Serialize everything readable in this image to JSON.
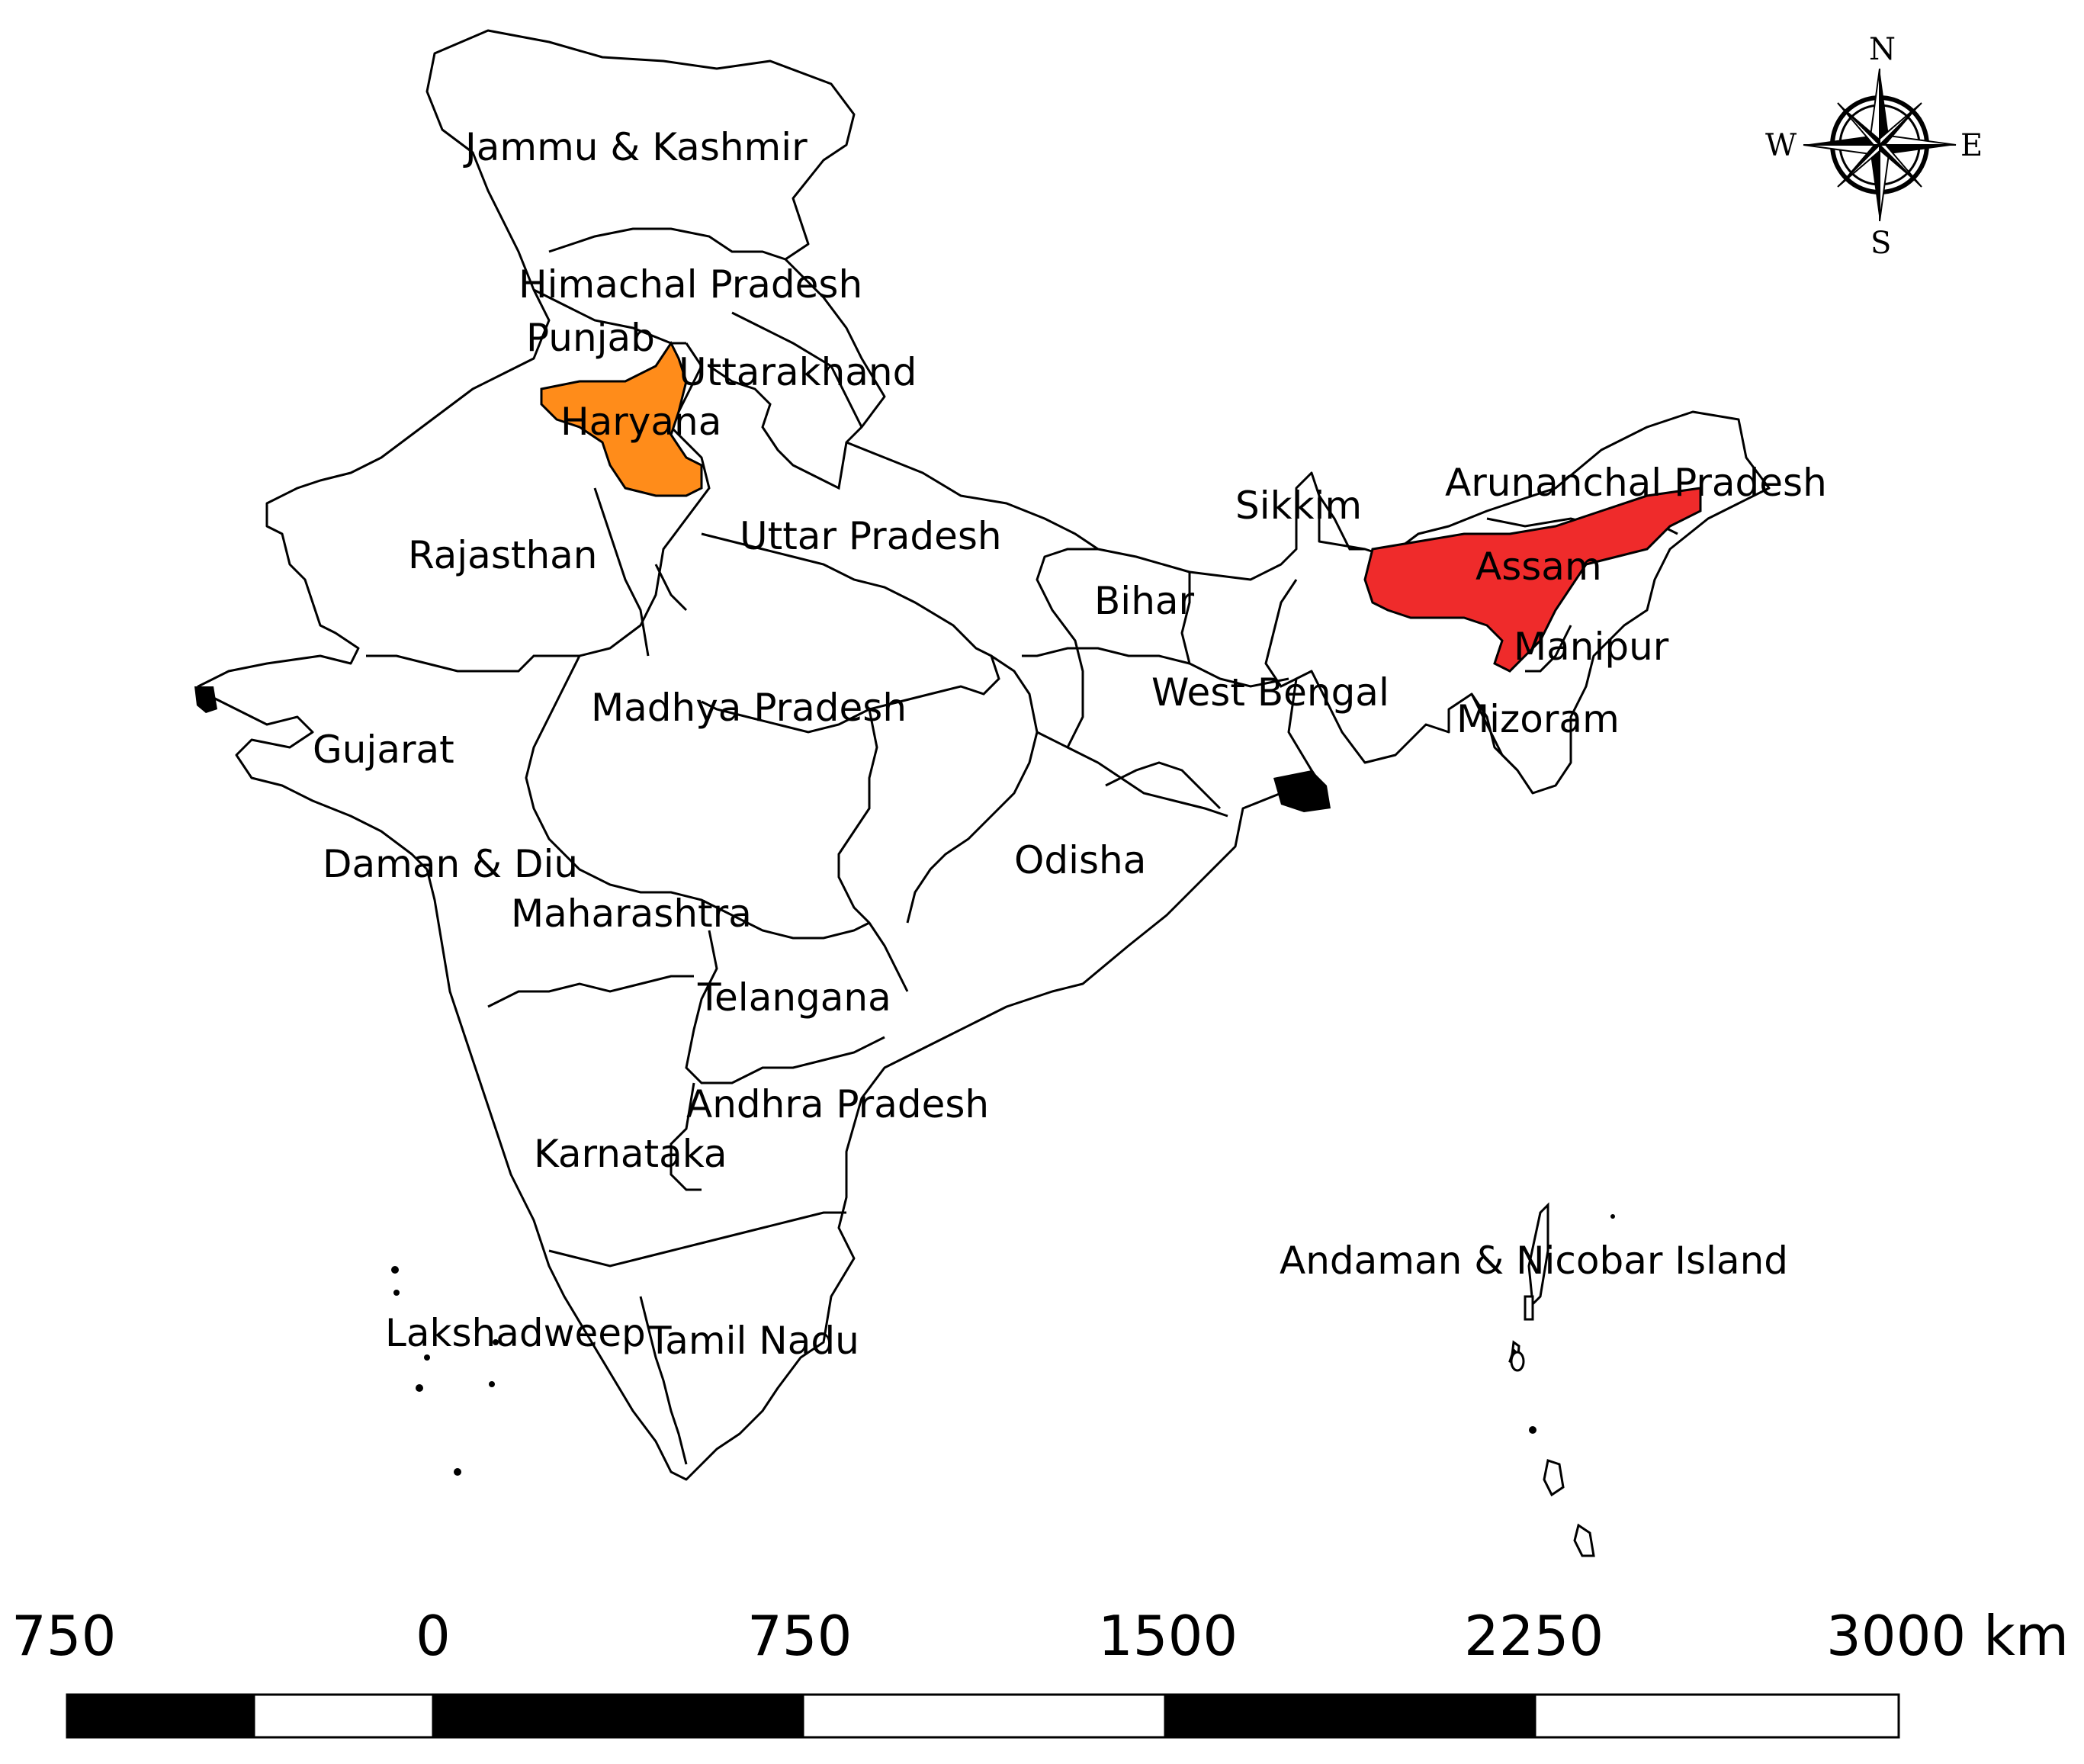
{
  "map": {
    "highlight_colors": {
      "haryana": "#ff8c1a",
      "assam": "#ef2b2b"
    },
    "highlighted_states": [
      {
        "name": "Haryana",
        "color": "#ff8c1a"
      },
      {
        "name": "Assam",
        "color": "#ef2b2b"
      }
    ],
    "labels": {
      "jammu_kashmir": "Jammu & Kashmir",
      "himachal_pradesh": "Himachal Pradesh",
      "punjab": "Punjab",
      "uttarakhand": "Uttarakhand",
      "haryana": "Haryana",
      "rajasthan": "Rajasthan",
      "uttar_pradesh": "Uttar Pradesh",
      "sikkim": "Sikkim",
      "arunachal_pradesh": "Arunanchal Pradesh",
      "assam": "Assam",
      "bihar": "Bihar",
      "manipur": "Manipur",
      "west_bengal": "West Bengal",
      "mizoram": "Mizoram",
      "madhya_pradesh": "Madhya Pradesh",
      "gujarat": "Gujarat",
      "daman_diu": "Daman & Diu",
      "odisha": "Odisha",
      "maharashtra": "Maharashtra",
      "telangana": "Telangana",
      "andhra_pradesh": "Andhra Pradesh",
      "karnataka": "Karnataka",
      "andaman_nicobar": "Andaman & Nicobar Island",
      "lakshadweep": "Lakshadweep",
      "tamil_nadu": "Tamil Nadu"
    }
  },
  "compass": {
    "north": "N",
    "south": "S",
    "east": "E",
    "west": "W"
  },
  "scale_bar": {
    "ticks": [
      "750",
      "0",
      "750",
      "1500",
      "2250",
      "3000 km"
    ],
    "unit": "km"
  }
}
